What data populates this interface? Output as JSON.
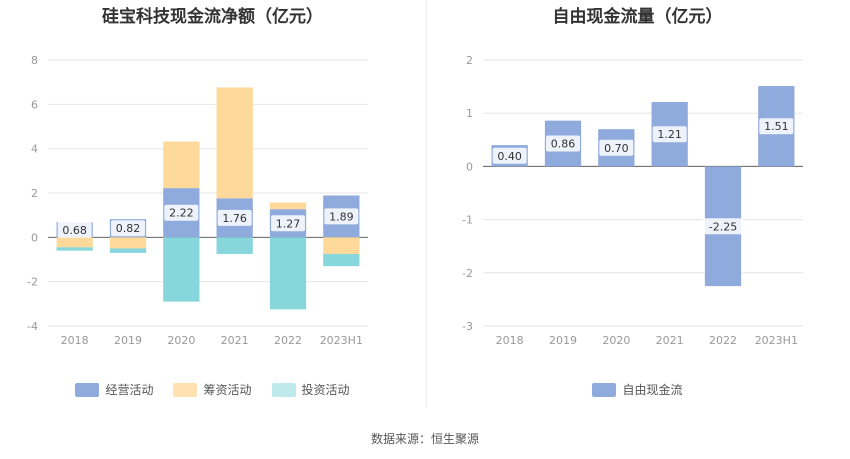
{
  "chart_data": [
    {
      "type": "bar",
      "stacked": true,
      "title": "硅宝科技现金流净额（亿元）",
      "categories": [
        "2018",
        "2019",
        "2020",
        "2021",
        "2022",
        "2023H1"
      ],
      "ylim": [
        -4,
        8
      ],
      "yticks": [
        -4,
        -2,
        0,
        2,
        4,
        6,
        8
      ],
      "grid": true,
      "legend_position": "bottom",
      "series": [
        {
          "name": "经营活动",
          "color": "#8faadc",
          "values": [
            0.68,
            0.82,
            2.22,
            1.76,
            1.27,
            1.89
          ],
          "labels": [
            "0.68",
            "0.82",
            "2.22",
            "1.76",
            "1.27",
            "1.89"
          ]
        },
        {
          "name": "筹资活动",
          "color": "#ffd99a",
          "values": [
            -0.45,
            -0.5,
            2.1,
            5.0,
            0.3,
            -0.75
          ]
        },
        {
          "name": "投资活动",
          "color": "#86d6dc",
          "values": [
            -0.15,
            -0.2,
            -2.9,
            -0.75,
            -3.25,
            -0.55
          ]
        }
      ]
    },
    {
      "type": "bar",
      "title": "自由现金流量（亿元）",
      "categories": [
        "2018",
        "2019",
        "2020",
        "2021",
        "2022",
        "2023H1"
      ],
      "ylim": [
        -3,
        2
      ],
      "yticks": [
        -3,
        -2,
        -1,
        0,
        1,
        2
      ],
      "grid": true,
      "legend_position": "bottom",
      "series": [
        {
          "name": "自由现金流",
          "color": "#8faadc",
          "values": [
            0.4,
            0.86,
            0.7,
            1.21,
            -2.25,
            1.51
          ],
          "labels": [
            "0.40",
            "0.86",
            "0.70",
            "1.21",
            "-2.25",
            "1.51"
          ]
        }
      ]
    }
  ],
  "source": "数据来源：恒生聚源"
}
